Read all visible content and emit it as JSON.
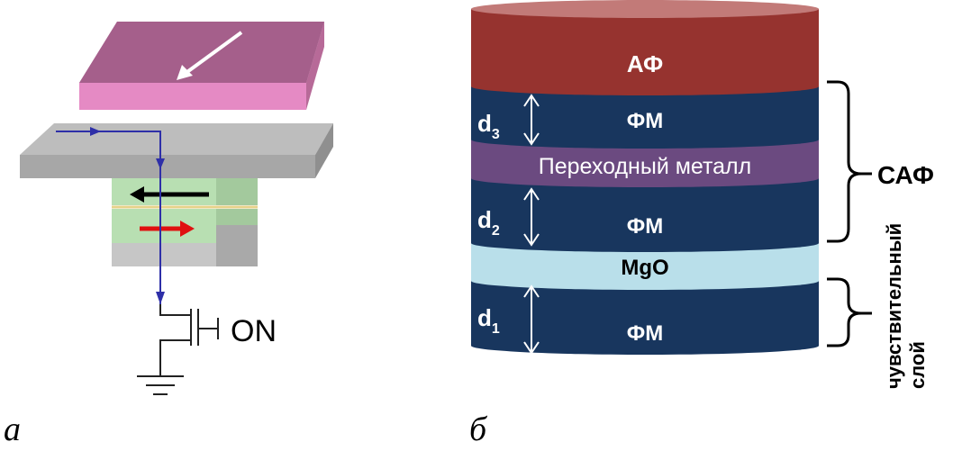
{
  "figure_a": {
    "caption": "а",
    "transistor_label": "ON"
  },
  "figure_b": {
    "caption": "б",
    "layers": {
      "af": "АФ",
      "fm_top": "ФМ",
      "transition_metal": "Переходный металл",
      "fm_middle": "ФМ",
      "mgo": "MgO",
      "fm_bottom": "ФМ"
    },
    "thickness": {
      "d3": {
        "base": "d",
        "sub": "3"
      },
      "d2": {
        "base": "d",
        "sub": "2"
      },
      "d1": {
        "base": "d",
        "sub": "1"
      }
    },
    "brackets": {
      "saf": "САФ",
      "sensitive_line1": "чувствительный",
      "sensitive_line2": "слой"
    }
  },
  "colors": {
    "pink_plate": "#a05a86",
    "gray_plate": "#a7a7a7",
    "green_layer": "#b8dfb2",
    "current_line": "#2e2fa8",
    "af_layer": "#96332f",
    "fm_layer": "#18365e",
    "transition_metal_layer": "#6b4a80",
    "mgo_layer": "#b9dfea"
  }
}
